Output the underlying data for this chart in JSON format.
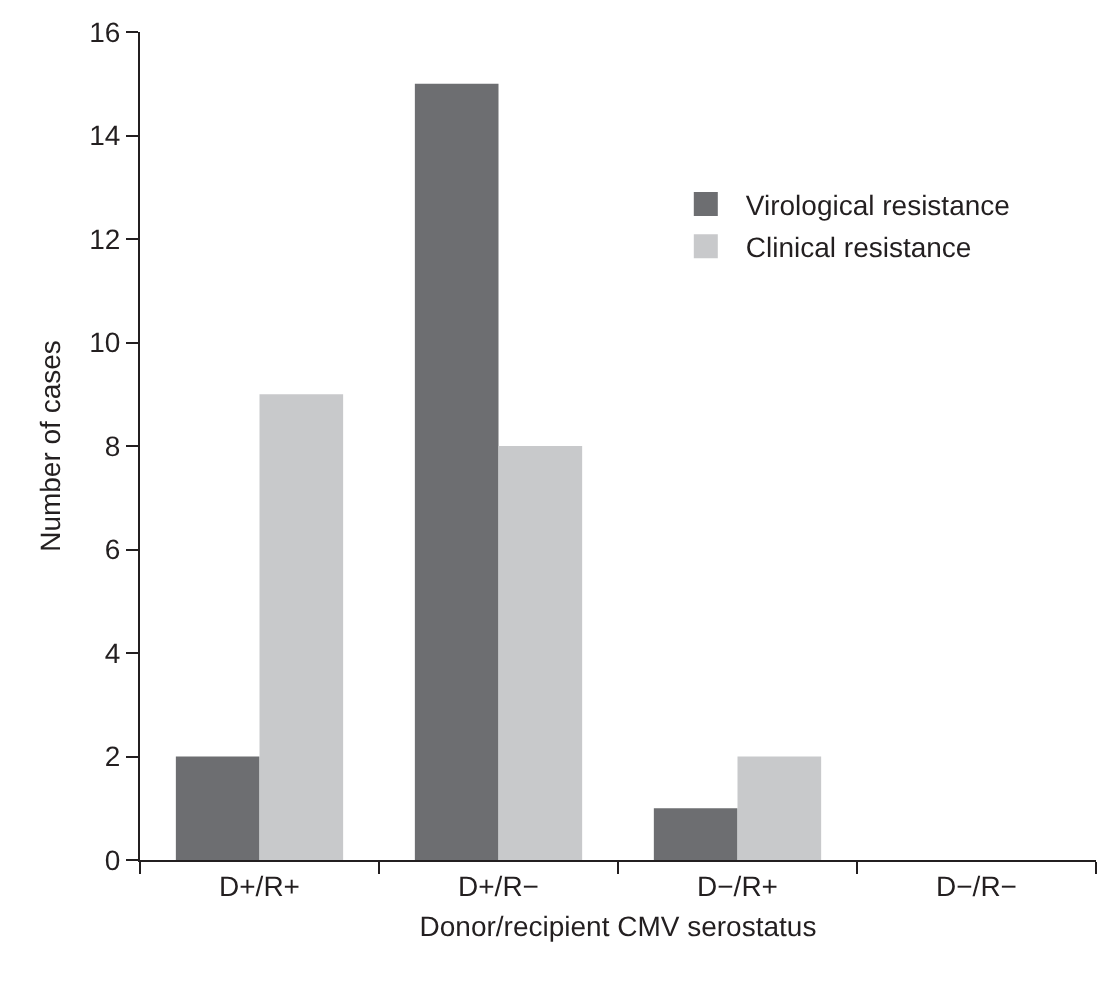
{
  "chart_data": {
    "type": "bar",
    "xlabel": "Donor/recipient CMV serostatus",
    "ylabel": "Number of cases",
    "categories": [
      "D+/R+",
      "D+/R−",
      "D−/R+",
      "D−/R−"
    ],
    "series": [
      {
        "name": "Virological resistance",
        "color": "#6d6e71",
        "values": [
          2,
          15,
          1,
          0
        ]
      },
      {
        "name": "Clinical resistance",
        "color": "#c8c9cb",
        "values": [
          9,
          8,
          2,
          0
        ]
      }
    ],
    "ylim": [
      0,
      16
    ],
    "yticks": [
      0,
      2,
      4,
      6,
      8,
      10,
      12,
      14,
      16
    ],
    "grid": false,
    "legend": "top right"
  }
}
